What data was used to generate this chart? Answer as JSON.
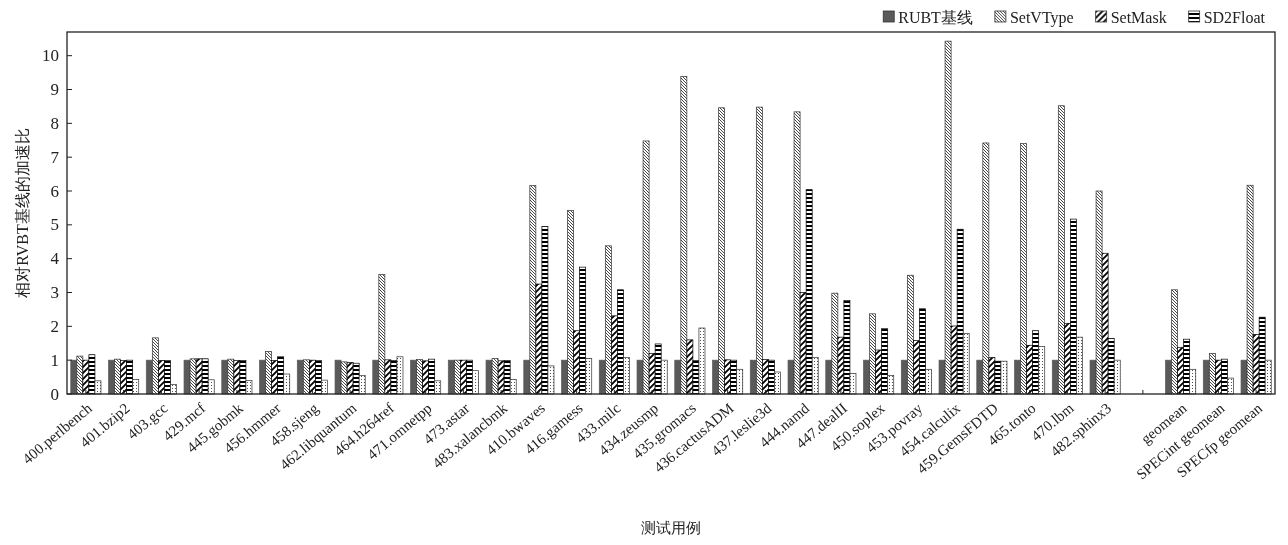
{
  "chart_data": {
    "type": "bar",
    "xlabel": "测试用例",
    "ylabel": "相对RVBT基线的加速比",
    "categories": [
      "400.perlbench",
      "401.bzip2",
      "403.gcc",
      "429.mcf",
      "445.gobmk",
      "456.hmmer",
      "458.sjeng",
      "462.libquantum",
      "464.h264ref",
      "471.omnetpp",
      "473.astar",
      "483.xalancbmk",
      "410.bwaves",
      "416.gamess",
      "433.milc",
      "434.zeusmp",
      "435.gromacs",
      "436.cactusADM",
      "437.leslie3d",
      "444.namd",
      "447.dealII",
      "450.soplex",
      "453.povray",
      "454.calculix",
      "459.GemsFDTD",
      "465.tonto",
      "470.lbm",
      "482.sphinx3",
      null,
      "geomean",
      "SPECint geomean",
      "SPECfp geomean"
    ],
    "series": [
      {
        "name": "RUBT基线",
        "color": "#5a5a5a",
        "values": [
          1,
          1,
          1,
          1,
          1,
          1,
          1,
          1,
          1,
          1,
          1,
          1,
          1,
          1,
          1,
          1,
          1,
          1,
          1,
          1,
          1,
          1,
          1,
          1,
          1,
          1,
          1,
          1,
          null,
          1,
          1,
          1
        ]
      },
      {
        "name": "SetVType",
        "color": "#333333",
        "values": [
          1.12,
          1.03,
          1.66,
          1.04,
          1.03,
          1.26,
          1.01,
          0.95,
          3.53,
          1.02,
          1.0,
          1.05,
          6.16,
          5.42,
          4.38,
          7.48,
          9.39,
          8.46,
          8.48,
          8.34,
          2.98,
          2.37,
          3.51,
          10.43,
          7.42,
          7.4,
          8.52,
          6.0,
          null,
          3.08,
          1.2,
          6.17
        ]
      },
      {
        "name": "SetMask",
        "color": "#000000",
        "values": [
          1.0,
          0.99,
          0.99,
          1.04,
          0.99,
          0.99,
          1.0,
          0.93,
          1.01,
          0.98,
          1.0,
          0.98,
          3.25,
          1.87,
          2.31,
          1.2,
          1.6,
          1.01,
          1.02,
          3.0,
          1.68,
          1.3,
          1.58,
          2.01,
          1.08,
          1.44,
          2.09,
          4.16,
          null,
          1.38,
          1.0,
          1.76
        ]
      },
      {
        "name": "SD2Float",
        "color": "#000000",
        "values": [
          1.16,
          1.0,
          0.99,
          1.04,
          0.99,
          1.1,
          0.99,
          0.91,
          0.99,
          1.03,
          1.0,
          0.99,
          4.95,
          3.75,
          3.08,
          1.48,
          0.99,
          1.0,
          1.0,
          6.04,
          2.76,
          1.93,
          2.52,
          4.87,
          0.97,
          1.87,
          5.17,
          1.64,
          null,
          1.62,
          1.03,
          2.27
        ]
      },
      {
        "color": "#333333",
        "values": [
          0.39,
          0.43,
          0.28,
          0.42,
          0.4,
          0.59,
          0.41,
          0.55,
          1.1,
          0.39,
          0.69,
          0.43,
          0.83,
          1.05,
          1.08,
          1.0,
          1.95,
          0.73,
          0.65,
          1.08,
          0.61,
          0.55,
          0.73,
          1.79,
          0.97,
          1.4,
          1.68,
          1.0,
          null,
          0.73,
          0.47,
          1.0
        ]
      }
    ],
    "ylim": [
      0,
      10.7
    ],
    "yticks": [
      0,
      1,
      2,
      3,
      4,
      5,
      6,
      7,
      8,
      9,
      10
    ],
    "legend": "top right",
    "grid": false
  }
}
